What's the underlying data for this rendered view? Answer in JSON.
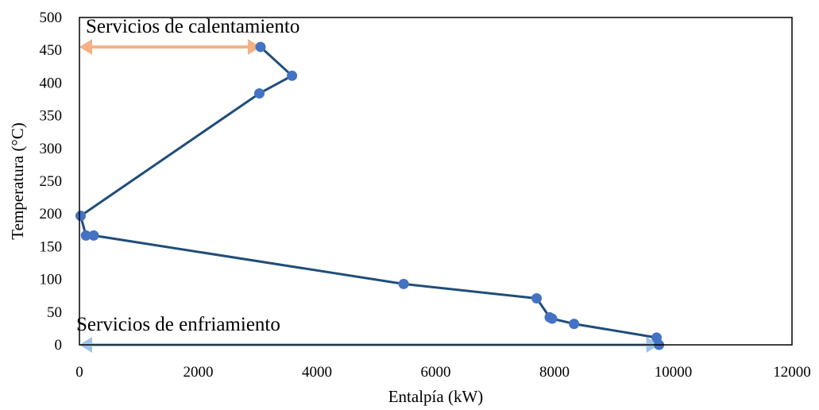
{
  "chart_data": {
    "type": "line",
    "xlabel": "Entalpía (kW)",
    "ylabel": "Temperatura (°C)",
    "xlim": [
      0,
      12000
    ],
    "ylim": [
      0,
      500
    ],
    "x_ticks": [
      "0",
      "2000",
      "4000",
      "6000",
      "8000",
      "10000",
      "12000"
    ],
    "y_ticks": [
      "0",
      "50",
      "100",
      "150",
      "200",
      "250",
      "300",
      "350",
      "400",
      "450",
      "500"
    ],
    "grid": false,
    "series": [
      {
        "color": "#1f4e79",
        "marker_color": "#4472c4",
        "points": [
          {
            "x": 3050,
            "y": 455
          },
          {
            "x": 3580,
            "y": 411
          },
          {
            "x": 3030,
            "y": 384
          },
          {
            "x": 20,
            "y": 197
          },
          {
            "x": 110,
            "y": 167
          },
          {
            "x": 240,
            "y": 167
          },
          {
            "x": 5460,
            "y": 93
          },
          {
            "x": 7700,
            "y": 71
          },
          {
            "x": 7920,
            "y": 42
          },
          {
            "x": 7960,
            "y": 40
          },
          {
            "x": 8330,
            "y": 32
          },
          {
            "x": 9720,
            "y": 11
          },
          {
            "x": 9760,
            "y": 0
          }
        ]
      }
    ],
    "annotations": [
      {
        "text": "Servicios de calentamiento",
        "color": "#f4b183",
        "x_start": 0,
        "x_end": 3050,
        "y": 455
      },
      {
        "text": "Servicios de enfriamiento",
        "color": "#9dc3e6",
        "x_start": 0,
        "x_end": 9760,
        "y": 0
      }
    ]
  }
}
